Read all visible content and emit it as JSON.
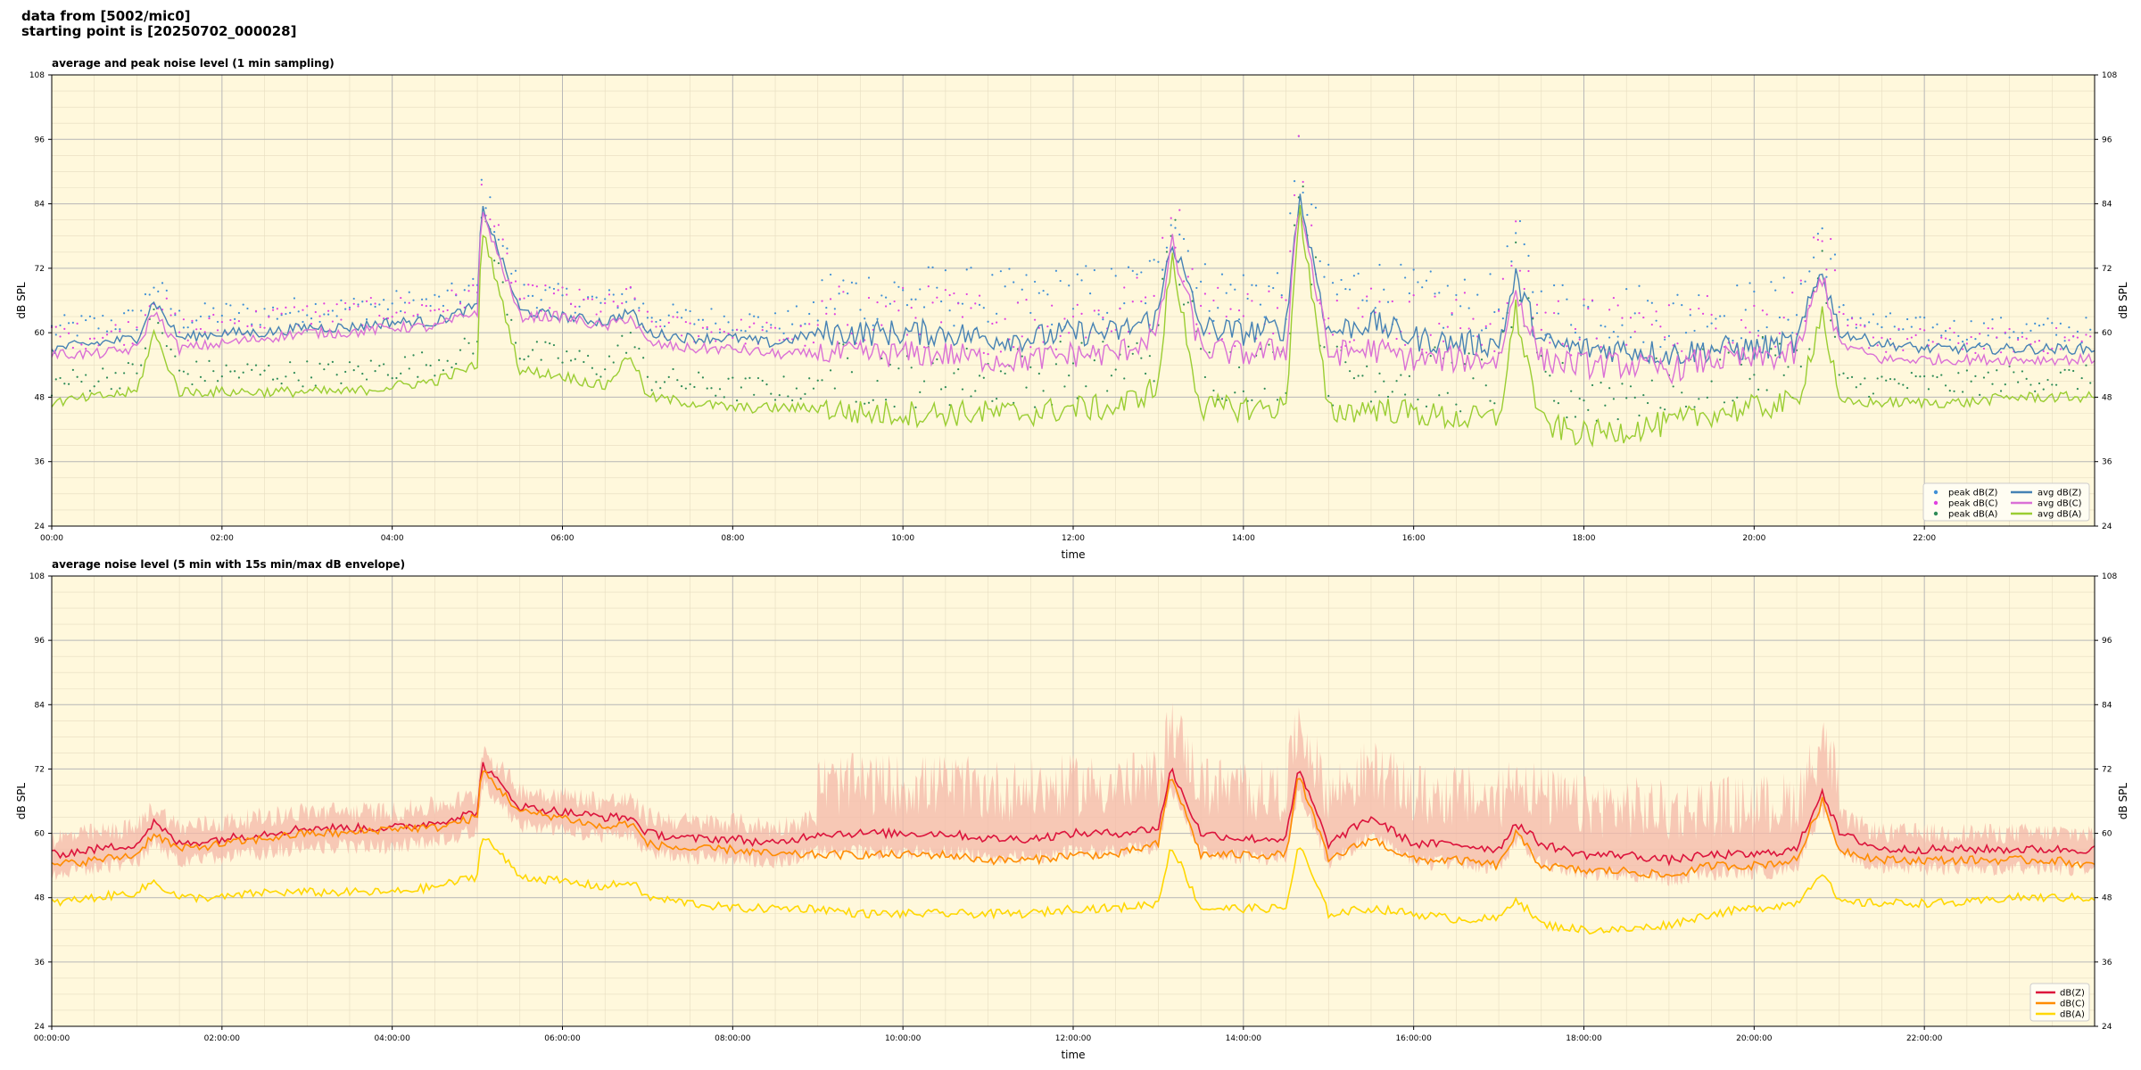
{
  "header": {
    "line1": "data from [5002/mic0]",
    "line2": "starting point is [20250702_000028]"
  },
  "colors": {
    "background": "#fff8dc",
    "peak_z": "#3f8fd6",
    "peak_c": "#e040e0",
    "peak_a": "#2e8b57",
    "avg_z": "#4682b4",
    "avg_c": "#da70d6",
    "avg_a": "#9acd32",
    "db_z": "#dc143c",
    "db_c": "#ff8c00",
    "db_a": "#ffd700",
    "envelope": "#f4b8a8"
  },
  "chart_data": [
    {
      "type": "line",
      "title": "average and peak noise level (1 min sampling)",
      "xlabel": "time",
      "ylabel": "dB SPL",
      "xlim": [
        0,
        24
      ],
      "ylim": [
        24,
        108
      ],
      "x_ticks": [
        "00:00",
        "02:00",
        "04:00",
        "06:00",
        "08:00",
        "10:00",
        "12:00",
        "14:00",
        "16:00",
        "18:00",
        "20:00",
        "22:00"
      ],
      "y_ticks": [
        "24",
        "36",
        "48",
        "60",
        "72",
        "84",
        "96",
        "108"
      ],
      "grid": true,
      "legend_position": "lower-right",
      "legend": [
        "peak dB(Z)",
        "peak dB(C)",
        "peak dB(A)",
        "avg dB(Z)",
        "avg dB(C)",
        "avg dB(A)"
      ],
      "x_hours": [
        0,
        0.5,
        1,
        1.2,
        1.5,
        2,
        2.5,
        3,
        3.5,
        4,
        4.5,
        5,
        5.05,
        5.5,
        6,
        6.5,
        6.8,
        7,
        7.5,
        8,
        8.5,
        9,
        9.5,
        10,
        10.5,
        11,
        11.5,
        12,
        12.5,
        13,
        13.15,
        13.5,
        14,
        14.5,
        14.65,
        15,
        15.5,
        16,
        16.5,
        17,
        17.2,
        17.5,
        18,
        18.5,
        19,
        19.5,
        20,
        20.5,
        20.8,
        21,
        21.5,
        22,
        22.5,
        23,
        23.5,
        24
      ],
      "series": [
        {
          "name": "avg dB(Z)",
          "values": [
            57,
            58,
            59,
            66,
            59,
            60,
            60,
            61,
            61,
            62,
            62,
            65,
            84,
            64,
            63,
            62,
            64,
            60,
            59,
            59,
            58,
            60,
            60,
            60,
            60,
            59,
            59,
            60,
            60,
            63,
            78,
            61,
            60,
            61,
            86,
            60,
            62,
            59,
            58,
            58,
            70,
            58,
            57,
            57,
            56,
            57,
            57,
            58,
            72,
            60,
            58,
            57,
            57,
            57,
            57,
            57
          ]
        },
        {
          "name": "avg dB(C)",
          "values": [
            56,
            56,
            57,
            64,
            57,
            58,
            59,
            60,
            60,
            61,
            61,
            64,
            83,
            63,
            63,
            61,
            63,
            58,
            57,
            57,
            56,
            56,
            56,
            56,
            56,
            55,
            55,
            56,
            56,
            60,
            77,
            57,
            56,
            57,
            85,
            56,
            57,
            55,
            55,
            55,
            68,
            55,
            54,
            54,
            53,
            55,
            55,
            56,
            71,
            58,
            55,
            55,
            55,
            55,
            55,
            55
          ]
        },
        {
          "name": "avg dB(A)",
          "values": [
            47,
            48,
            49,
            60,
            49,
            49,
            49,
            49,
            49,
            50,
            51,
            54,
            80,
            53,
            52,
            50,
            56,
            48,
            47,
            46,
            46,
            46,
            45,
            45,
            45,
            45,
            45,
            46,
            46,
            50,
            74,
            46,
            46,
            46,
            84,
            45,
            46,
            45,
            44,
            44,
            64,
            43,
            41,
            42,
            43,
            45,
            46,
            47,
            64,
            47,
            47,
            47,
            47,
            48,
            48,
            48
          ]
        }
      ],
      "peak_series_note_names": [
        "peak dB(Z)",
        "peak dB(C)",
        "peak dB(A)"
      ]
    },
    {
      "type": "area",
      "title": "average noise level (5 min with 15s min/max dB envelope)",
      "xlabel": "time",
      "ylabel": "dB SPL",
      "xlim": [
        0,
        24
      ],
      "ylim": [
        24,
        108
      ],
      "x_ticks": [
        "00:00:00",
        "02:00:00",
        "04:00:00",
        "06:00:00",
        "08:00:00",
        "10:00:00",
        "12:00:00",
        "14:00:00",
        "16:00:00",
        "18:00:00",
        "20:00:00",
        "22:00:00"
      ],
      "y_ticks": [
        "24",
        "36",
        "48",
        "60",
        "72",
        "84",
        "96",
        "108"
      ],
      "grid": true,
      "legend_position": "lower-right",
      "legend": [
        "dB(Z)",
        "dB(C)",
        "dB(A)"
      ],
      "x_hours": [
        0,
        0.5,
        1,
        1.2,
        1.5,
        2,
        2.5,
        3,
        3.5,
        4,
        4.5,
        5,
        5.05,
        5.5,
        6,
        6.5,
        6.8,
        7,
        7.5,
        8,
        8.5,
        9,
        9.5,
        10,
        10.5,
        11,
        11.5,
        12,
        12.5,
        13,
        13.15,
        13.5,
        14,
        14.5,
        14.65,
        15,
        15.5,
        16,
        16.5,
        17,
        17.2,
        17.5,
        18,
        18.5,
        19,
        19.5,
        20,
        20.5,
        20.8,
        21,
        21.5,
        22,
        22.5,
        23,
        23.5,
        24
      ],
      "series": [
        {
          "name": "dB(Z)",
          "values": [
            56,
            57,
            58,
            62,
            58,
            59,
            60,
            61,
            61,
            61,
            62,
            64,
            73,
            65,
            64,
            63,
            63,
            60,
            59,
            59,
            58,
            60,
            60,
            60,
            60,
            59,
            59,
            60,
            60,
            61,
            72,
            60,
            59,
            59,
            72,
            58,
            63,
            58,
            58,
            57,
            62,
            58,
            56,
            56,
            55,
            56,
            56,
            57,
            68,
            60,
            57,
            57,
            57,
            57,
            57,
            57
          ]
        },
        {
          "name": "dB(C)",
          "values": [
            54,
            55,
            56,
            60,
            57,
            58,
            59,
            60,
            60,
            61,
            61,
            63,
            72,
            64,
            63,
            61,
            62,
            58,
            57,
            57,
            56,
            56,
            56,
            56,
            56,
            55,
            55,
            56,
            56,
            58,
            71,
            56,
            56,
            56,
            71,
            55,
            59,
            55,
            55,
            54,
            60,
            54,
            53,
            53,
            52,
            54,
            54,
            55,
            66,
            57,
            55,
            55,
            55,
            55,
            55,
            54
          ]
        },
        {
          "name": "dB(A)",
          "values": [
            47,
            48,
            49,
            51,
            48,
            48,
            49,
            49,
            49,
            49,
            50,
            52,
            60,
            52,
            51,
            50,
            51,
            48,
            47,
            46,
            46,
            46,
            45,
            45,
            45,
            45,
            45,
            46,
            46,
            47,
            58,
            46,
            46,
            46,
            58,
            45,
            46,
            45,
            44,
            44,
            48,
            43,
            42,
            42,
            43,
            45,
            46,
            47,
            53,
            47,
            47,
            47,
            47,
            48,
            48,
            48
          ]
        }
      ],
      "envelope": {
        "name": "min/max dB envelope"
      }
    }
  ]
}
